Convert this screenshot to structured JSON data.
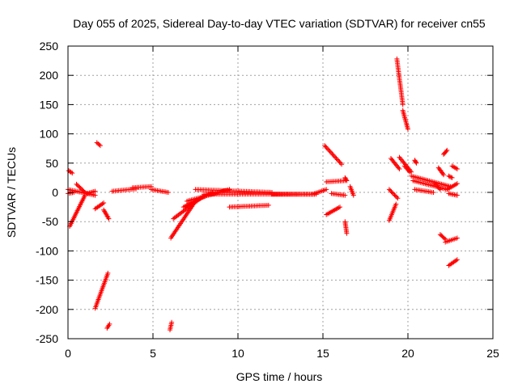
{
  "chart_data": {
    "type": "scatter",
    "title": "Day 055 of 2025, Sidereal Day-to-day VTEC variation (SDTVAR) for receiver cn55",
    "xlabel": "GPS time / hours",
    "ylabel": "SDTVAR / TECUs",
    "xlim": [
      0,
      25
    ],
    "ylim": [
      -250,
      250
    ],
    "xticks": [
      0,
      5,
      10,
      15,
      20,
      25
    ],
    "yticks": [
      -250,
      -200,
      -150,
      -100,
      -50,
      0,
      50,
      100,
      150,
      200,
      250
    ],
    "xtick_labels": [
      "0",
      "5",
      "10",
      "15",
      "20",
      "25"
    ],
    "ytick_labels": [
      "-250",
      "-200",
      "-150",
      "-100",
      "-50",
      "0",
      "50",
      "100",
      "150",
      "200",
      "250"
    ],
    "grid": true,
    "marker": "+",
    "series_color": "#ff0000",
    "segments": [
      {
        "from": [
          0.0,
          5
        ],
        "to": [
          1.6,
          -5
        ]
      },
      {
        "from": [
          0.05,
          37
        ],
        "to": [
          0.25,
          33
        ]
      },
      {
        "from": [
          0.0,
          -2
        ],
        "to": [
          0.35,
          0
        ]
      },
      {
        "from": [
          0.1,
          -58
        ],
        "to": [
          1.0,
          -5
        ]
      },
      {
        "from": [
          0.5,
          14
        ],
        "to": [
          1.0,
          0
        ]
      },
      {
        "from": [
          1.1,
          -2
        ],
        "to": [
          1.6,
          2
        ]
      },
      {
        "from": [
          1.6,
          -28
        ],
        "to": [
          2.1,
          -18
        ]
      },
      {
        "from": [
          2.1,
          -30
        ],
        "to": [
          2.4,
          -45
        ]
      },
      {
        "from": [
          1.7,
          85
        ],
        "to": [
          1.9,
          80
        ]
      },
      {
        "from": [
          1.6,
          -198
        ],
        "to": [
          2.35,
          -138
        ]
      },
      {
        "from": [
          2.3,
          -232
        ],
        "to": [
          2.45,
          -225
        ]
      },
      {
        "from": [
          2.6,
          2
        ],
        "to": [
          4.0,
          6
        ]
      },
      {
        "from": [
          3.8,
          8
        ],
        "to": [
          4.9,
          10
        ]
      },
      {
        "from": [
          4.9,
          5
        ],
        "to": [
          5.9,
          0
        ]
      },
      {
        "from": [
          6.0,
          -235
        ],
        "to": [
          6.1,
          -222
        ]
      },
      {
        "from": [
          6.05,
          -78
        ],
        "to": [
          7.5,
          -15
        ]
      },
      {
        "from": [
          6.2,
          -45
        ],
        "to": [
          7.8,
          -10
        ]
      },
      {
        "from": [
          6.8,
          -25
        ],
        "to": [
          8.5,
          0
        ]
      },
      {
        "from": [
          7.0,
          -15
        ],
        "to": [
          9.5,
          5
        ]
      },
      {
        "from": [
          7.5,
          5
        ],
        "to": [
          12.0,
          0
        ]
      },
      {
        "from": [
          8.0,
          -3
        ],
        "to": [
          14.5,
          -3
        ]
      },
      {
        "from": [
          9.5,
          -25
        ],
        "to": [
          11.8,
          -22
        ]
      },
      {
        "from": [
          12.0,
          -3
        ],
        "to": [
          14.6,
          -3
        ]
      },
      {
        "from": [
          14.4,
          -3
        ],
        "to": [
          15.2,
          5
        ]
      },
      {
        "from": [
          15.1,
          80
        ],
        "to": [
          16.1,
          48
        ]
      },
      {
        "from": [
          15.2,
          18
        ],
        "to": [
          16.3,
          20
        ]
      },
      {
        "from": [
          15.2,
          -38
        ],
        "to": [
          16.0,
          -25
        ]
      },
      {
        "from": [
          15.5,
          -2
        ],
        "to": [
          16.3,
          -5
        ]
      },
      {
        "from": [
          16.3,
          25
        ],
        "to": [
          16.4,
          20
        ]
      },
      {
        "from": [
          16.3,
          -50
        ],
        "to": [
          16.4,
          -70
        ]
      },
      {
        "from": [
          16.6,
          10
        ],
        "to": [
          16.8,
          -5
        ]
      },
      {
        "from": [
          18.9,
          -48
        ],
        "to": [
          19.3,
          -20
        ]
      },
      {
        "from": [
          18.9,
          5
        ],
        "to": [
          19.4,
          -10
        ]
      },
      {
        "from": [
          19.0,
          58
        ],
        "to": [
          19.5,
          40
        ]
      },
      {
        "from": [
          19.35,
          228
        ],
        "to": [
          19.7,
          150
        ]
      },
      {
        "from": [
          19.7,
          140
        ],
        "to": [
          20.0,
          108
        ]
      },
      {
        "from": [
          19.5,
          60
        ],
        "to": [
          20.2,
          35
        ]
      },
      {
        "from": [
          19.8,
          45
        ],
        "to": [
          20.1,
          35
        ]
      },
      {
        "from": [
          20.2,
          28
        ],
        "to": [
          22.5,
          10
        ]
      },
      {
        "from": [
          20.3,
          20
        ],
        "to": [
          22.3,
          5
        ]
      },
      {
        "from": [
          20.4,
          55
        ],
        "to": [
          20.5,
          50
        ]
      },
      {
        "from": [
          20.4,
          5
        ],
        "to": [
          21.5,
          0
        ]
      },
      {
        "from": [
          21.8,
          42
        ],
        "to": [
          22.1,
          30
        ]
      },
      {
        "from": [
          21.6,
          15
        ],
        "to": [
          21.9,
          5
        ]
      },
      {
        "from": [
          22.1,
          65
        ],
        "to": [
          22.3,
          72
        ]
      },
      {
        "from": [
          21.9,
          -72
        ],
        "to": [
          22.2,
          -80
        ]
      },
      {
        "from": [
          22.2,
          -85
        ],
        "to": [
          22.9,
          -78
        ]
      },
      {
        "from": [
          22.3,
          5
        ],
        "to": [
          22.9,
          15
        ]
      },
      {
        "from": [
          22.4,
          -2
        ],
        "to": [
          22.9,
          -5
        ]
      },
      {
        "from": [
          22.4,
          28
        ],
        "to": [
          22.6,
          25
        ]
      },
      {
        "from": [
          22.6,
          45
        ],
        "to": [
          22.9,
          40
        ]
      },
      {
        "from": [
          22.4,
          -125
        ],
        "to": [
          22.9,
          -115
        ]
      }
    ]
  }
}
